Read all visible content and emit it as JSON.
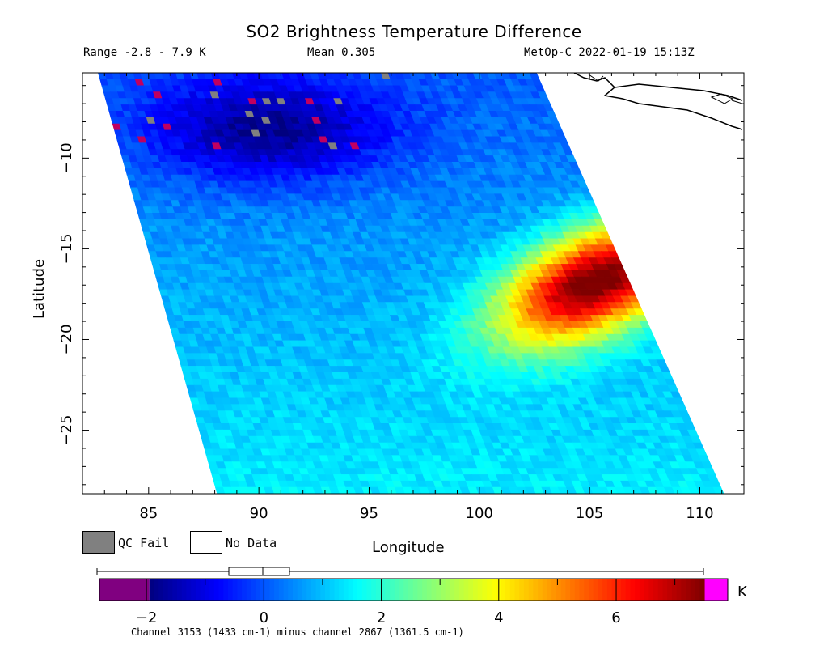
{
  "chart_data": {
    "type": "heatmap",
    "title": "SO2 Brightness Temperature Difference",
    "subtitle_left": "Range -2.8 - 7.9 K",
    "subtitle_center": "Mean 0.305",
    "subtitle_right": "MetOp-C 2022-01-19 15:13Z",
    "xlabel": "Longitude",
    "ylabel": "Latitude",
    "xlim": [
      82,
      112
    ],
    "ylim": [
      -28.5,
      -5.3
    ],
    "x_ticks": [
      85,
      90,
      95,
      100,
      105,
      110
    ],
    "x_tick_labels": [
      "85",
      "90",
      "95",
      "100",
      "105",
      "110"
    ],
    "y_ticks": [
      -10,
      -15,
      -20,
      -25
    ],
    "y_tick_labels": [
      "−10",
      "−15",
      "−20",
      "−25"
    ],
    "colorbar": {
      "range": [
        -2.8,
        7.9
      ],
      "ticks": [
        -2,
        0,
        2,
        4,
        6
      ],
      "tick_labels": [
        "−2",
        "0",
        "2",
        "4",
        "6"
      ],
      "unit": "K",
      "low_color": "#800080",
      "high_color": "#ff00ff",
      "stops": [
        "#00007f",
        "#0000ff",
        "#0080ff",
        "#00ffff",
        "#80ff80",
        "#ffff00",
        "#ff8000",
        "#ff0000",
        "#7f0000"
      ]
    },
    "legend": [
      {
        "label": "QC Fail",
        "color": "#808080"
      },
      {
        "label": "No Data",
        "color": "#ffffff"
      }
    ],
    "swath": {
      "top_lon": [
        82.7,
        102.6
      ],
      "bottom_lon": [
        88.1,
        111.1
      ]
    },
    "features": [
      {
        "description": "SO2 plume maximum",
        "lon": 105.3,
        "lat": -16.8,
        "value": 7.5
      },
      {
        "description": "negative BTD region",
        "lon": 90.5,
        "lat": -8.5,
        "value": -2.0
      }
    ],
    "footnote": "Channel 3153 (1433 cm-1) minus channel 2867 (1361.5 cm-1)"
  }
}
